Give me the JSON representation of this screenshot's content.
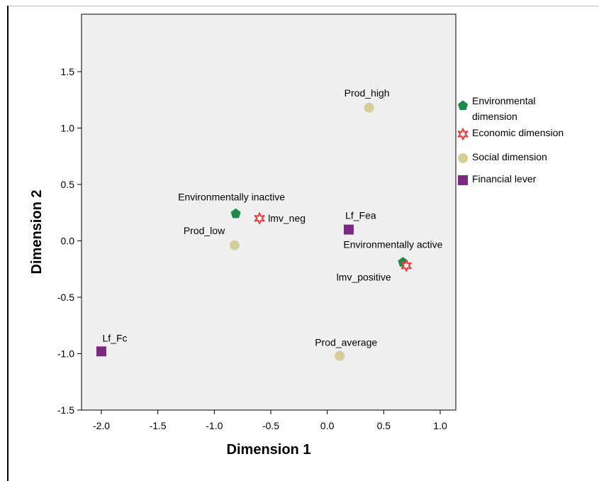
{
  "chart_data": {
    "type": "scatter",
    "xlabel": "Dimension 1",
    "ylabel": "Dimension 2",
    "xlim": [
      -2.2,
      1.15
    ],
    "ylim": [
      -1.5,
      1.8
    ],
    "xticks": [
      -2.0,
      -1.5,
      -1.0,
      -0.5,
      0.0,
      0.5,
      1.0
    ],
    "yticks": [
      -1.5,
      -1.0,
      -0.5,
      0.0,
      0.5,
      1.0,
      1.5
    ],
    "tick_labels_x": [
      "-2.0",
      "-1.5",
      "-1.0",
      "-0.5",
      "0.0",
      "0.5",
      "1.0"
    ],
    "tick_labels_y": [
      "-1.5",
      "-1.0",
      "-0.5",
      "0.0",
      "0.5",
      "1.0",
      "1.5"
    ],
    "grid": false,
    "legend_position": "right",
    "series": [
      {
        "name": "Environmental dimension",
        "legend_lines": [
          "Environmental",
          "dimension"
        ],
        "marker": "pentagon",
        "color": "#1e8a4a",
        "points": [
          {
            "label": "Environmentally inactive",
            "x": -0.81,
            "y": 0.24
          },
          {
            "label": "Environmentally active",
            "x": 0.67,
            "y": -0.19
          }
        ]
      },
      {
        "name": "Economic dimension",
        "legend_lines": [
          "Economic dimension"
        ],
        "marker": "star",
        "color": "#ee3b3b",
        "points": [
          {
            "label": "lmv_neg",
            "x": -0.6,
            "y": 0.2
          },
          {
            "label": "lmv_positive",
            "x": 0.7,
            "y": -0.22
          }
        ]
      },
      {
        "name": "Social dimension",
        "legend_lines": [
          "Social dimension"
        ],
        "marker": "circle",
        "color": "#d6cd98",
        "points": [
          {
            "label": "Prod_high",
            "x": 0.37,
            "y": 1.18
          },
          {
            "label": "Prod_low",
            "x": -0.82,
            "y": -0.04
          },
          {
            "label": "Prod_average",
            "x": 0.11,
            "y": -1.02
          }
        ]
      },
      {
        "name": "Financial lever",
        "legend_lines": [
          "Financial lever"
        ],
        "marker": "square",
        "color": "#7b2a82",
        "points": [
          {
            "label": "Lf_Fea",
            "x": 0.19,
            "y": 0.1
          },
          {
            "label": "Lf_Fc",
            "x": -2.0,
            "y": -0.98
          }
        ]
      }
    ]
  }
}
